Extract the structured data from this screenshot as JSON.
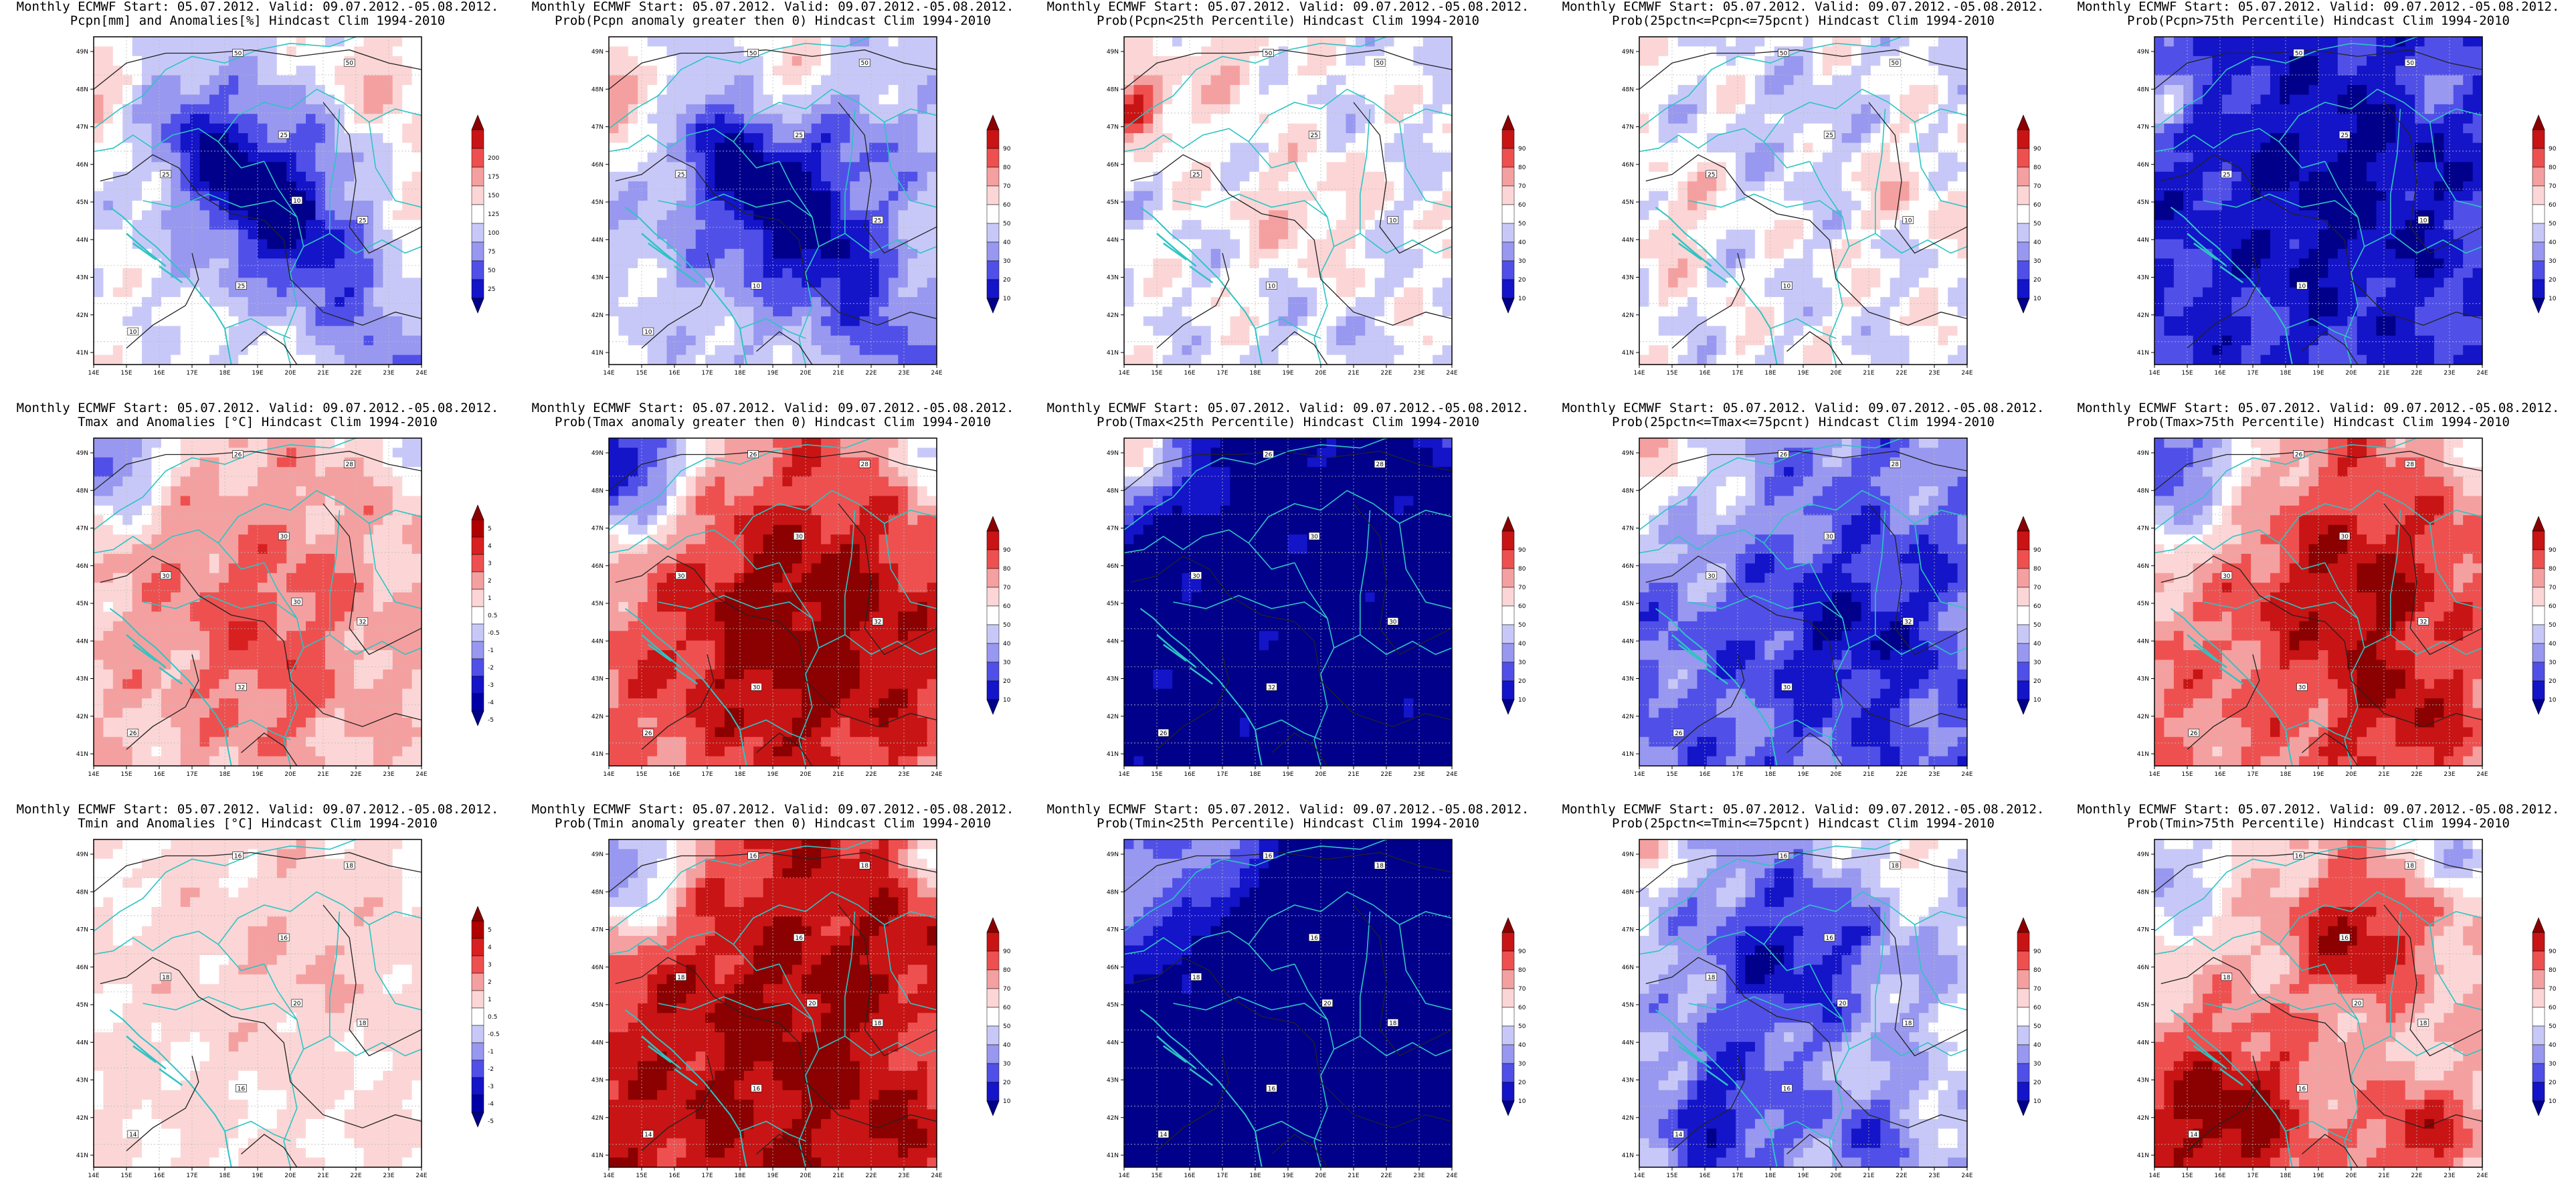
{
  "panels": [
    {
      "title1": "Monthly ECMWF Start: 05.07.2012. Valid: 09.07.2012.-05.08.2012.",
      "title2": "Pcpn[mm] and Anomalies[%] Hindcast Clim 1994-2010",
      "variable": "Pcpn",
      "scheme": "anom_pcpn",
      "field": "pcpn",
      "contour_labels": [
        "50",
        "50",
        "25",
        "25",
        "25",
        "25",
        "10",
        "10"
      ],
      "colorbar": {
        "levels": [
          "200",
          "175",
          "150",
          "125",
          "100",
          "75",
          "50",
          "25"
        ],
        "colors": [
          "#8b0000",
          "#c81414",
          "#ee5050",
          "#f5a0a0",
          "#fcd6d6",
          "#ffffff",
          "#c8c8f8",
          "#9898f0",
          "#5050e8",
          "#1414c8",
          "#00008b"
        ]
      }
    },
    {
      "title1": "Monthly ECMWF Start: 05.07.2012. Valid: 09.07.2012.-05.08.2012.",
      "title2": "Prob(Pcpn anomaly greater then 0) Hindcast Clim 1994-2010",
      "variable": "Pcpn",
      "scheme": "prob",
      "field": "pcpn_pos",
      "contour_labels": [
        "50",
        "50",
        "25",
        "25",
        "25",
        "10",
        "10"
      ],
      "colorbar": {
        "levels": [
          "90",
          "80",
          "70",
          "60",
          "50",
          "40",
          "30",
          "20",
          "10"
        ],
        "colors": [
          "#8b0000",
          "#c81414",
          "#ee5050",
          "#f5a0a0",
          "#fcd6d6",
          "#ffffff",
          "#c8c8f8",
          "#9898f0",
          "#5050e8",
          "#1414c8",
          "#00008b"
        ]
      }
    },
    {
      "title1": "Monthly ECMWF Start: 05.07.2012. Valid: 09.07.2012.-05.08.2012.",
      "title2": "Prob(Pcpn<25th Percentile) Hindcast Clim 1994-2010",
      "variable": "Pcpn",
      "scheme": "prob",
      "field": "pcpn_low",
      "contour_labels": [
        "50",
        "50",
        "25",
        "25",
        "10",
        "10"
      ],
      "colorbar": {
        "levels": [
          "90",
          "80",
          "70",
          "60",
          "50",
          "40",
          "30",
          "20",
          "10"
        ],
        "colors": [
          "#8b0000",
          "#c81414",
          "#ee5050",
          "#f5a0a0",
          "#fcd6d6",
          "#ffffff",
          "#c8c8f8",
          "#9898f0",
          "#5050e8",
          "#1414c8",
          "#00008b"
        ]
      }
    },
    {
      "title1": "Monthly ECMWF Start: 05.07.2012. Valid: 09.07.2012.-05.08.2012.",
      "title2": "Prob(25pctn<=Pcpn<=75pcnt) Hindcast Clim 1994-2010",
      "variable": "Pcpn",
      "scheme": "prob",
      "field": "pcpn_mid",
      "contour_labels": [
        "50",
        "50",
        "25",
        "25",
        "10",
        "10"
      ],
      "colorbar": {
        "levels": [
          "90",
          "80",
          "70",
          "60",
          "50",
          "40",
          "30",
          "20",
          "10"
        ],
        "colors": [
          "#8b0000",
          "#c81414",
          "#ee5050",
          "#f5a0a0",
          "#fcd6d6",
          "#ffffff",
          "#c8c8f8",
          "#9898f0",
          "#5050e8",
          "#1414c8",
          "#00008b"
        ]
      }
    },
    {
      "title1": "Monthly ECMWF Start: 05.07.2012. Valid: 09.07.2012.-05.08.2012.",
      "title2": "Prob(Pcpn>75th Percentile) Hindcast Clim 1994-2010",
      "variable": "Pcpn",
      "scheme": "prob",
      "field": "pcpn_high",
      "contour_labels": [
        "50",
        "50",
        "25",
        "25",
        "10",
        "10"
      ],
      "colorbar": {
        "levels": [
          "90",
          "80",
          "70",
          "60",
          "50",
          "40",
          "30",
          "20",
          "10"
        ],
        "colors": [
          "#8b0000",
          "#c81414",
          "#ee5050",
          "#f5a0a0",
          "#fcd6d6",
          "#ffffff",
          "#c8c8f8",
          "#9898f0",
          "#5050e8",
          "#1414c8",
          "#00008b"
        ]
      }
    },
    {
      "title1": "Monthly ECMWF Start: 05.07.2012. Valid: 09.07.2012.-05.08.2012.",
      "title2": "Tmax and Anomalies [°C] Hindcast Clim 1994-2010",
      "variable": "Tmax",
      "scheme": "anom_t",
      "field": "tmax",
      "contour_labels": [
        "26",
        "28",
        "30",
        "30",
        "32",
        "32",
        "26",
        "30"
      ],
      "colorbar": {
        "levels": [
          "5",
          "4",
          "3",
          "2",
          "1",
          "0.5",
          "-0.5",
          "-1",
          "-2",
          "-3",
          "-4",
          "-5"
        ],
        "colors": [
          "#8b0000",
          "#b00000",
          "#d82020",
          "#ee5050",
          "#f5a0a0",
          "#fcd6d6",
          "#ffffff",
          "#c8c8f8",
          "#9898f0",
          "#5050e8",
          "#1414c8",
          "#0000a8",
          "#00008b"
        ]
      }
    },
    {
      "title1": "Monthly ECMWF Start: 05.07.2012. Valid: 09.07.2012.-05.08.2012.",
      "title2": "Prob(Tmax anomaly greater then 0) Hindcast Clim 1994-2010",
      "variable": "Tmax",
      "scheme": "prob",
      "field": "tmax_pos",
      "contour_labels": [
        "26",
        "28",
        "30",
        "30",
        "32",
        "30",
        "26"
      ],
      "colorbar": {
        "levels": [
          "90",
          "80",
          "70",
          "60",
          "50",
          "40",
          "30",
          "20",
          "10"
        ],
        "colors": [
          "#8b0000",
          "#c81414",
          "#ee5050",
          "#f5a0a0",
          "#fcd6d6",
          "#ffffff",
          "#c8c8f8",
          "#9898f0",
          "#5050e8",
          "#1414c8",
          "#00008b"
        ]
      }
    },
    {
      "title1": "Monthly ECMWF Start: 05.07.2012. Valid: 09.07.2012.-05.08.2012.",
      "title2": "Prob(Tmax<25th Percentile) Hindcast Clim 1994-2010",
      "variable": "Tmax",
      "scheme": "prob",
      "field": "tmax_low",
      "contour_labels": [
        "26",
        "28",
        "30",
        "30",
        "30",
        "32",
        "26"
      ],
      "colorbar": {
        "levels": [
          "90",
          "80",
          "70",
          "60",
          "50",
          "40",
          "30",
          "20",
          "10"
        ],
        "colors": [
          "#8b0000",
          "#c81414",
          "#ee5050",
          "#f5a0a0",
          "#fcd6d6",
          "#ffffff",
          "#c8c8f8",
          "#9898f0",
          "#5050e8",
          "#1414c8",
          "#00008b"
        ]
      }
    },
    {
      "title1": "Monthly ECMWF Start: 05.07.2012. Valid: 09.07.2012.-05.08.2012.",
      "title2": "Prob(25pctn<=Tmax<=75pcnt) Hindcast Clim 1994-2010",
      "variable": "Tmax",
      "scheme": "prob",
      "field": "tmax_mid",
      "contour_labels": [
        "26",
        "28",
        "30",
        "30",
        "32",
        "30",
        "26"
      ],
      "colorbar": {
        "levels": [
          "90",
          "80",
          "70",
          "60",
          "50",
          "40",
          "30",
          "20",
          "10"
        ],
        "colors": [
          "#8b0000",
          "#c81414",
          "#ee5050",
          "#f5a0a0",
          "#fcd6d6",
          "#ffffff",
          "#c8c8f8",
          "#9898f0",
          "#5050e8",
          "#1414c8",
          "#00008b"
        ]
      }
    },
    {
      "title1": "Monthly ECMWF Start: 05.07.2012. Valid: 09.07.2012.-05.08.2012.",
      "title2": "Prob(Tmax>75th Percentile) Hindcast Clim 1994-2010",
      "variable": "Tmax",
      "scheme": "prob",
      "field": "tmax_high",
      "contour_labels": [
        "26",
        "28",
        "30",
        "30",
        "32",
        "30",
        "26"
      ],
      "colorbar": {
        "levels": [
          "90",
          "80",
          "70",
          "60",
          "50",
          "40",
          "30",
          "20",
          "10"
        ],
        "colors": [
          "#8b0000",
          "#c81414",
          "#ee5050",
          "#f5a0a0",
          "#fcd6d6",
          "#ffffff",
          "#c8c8f8",
          "#9898f0",
          "#5050e8",
          "#1414c8",
          "#00008b"
        ]
      }
    },
    {
      "title1": "Monthly ECMWF Start: 05.07.2012. Valid: 09.07.2012.-05.08.2012.",
      "title2": "Tmin and Anomalies [°C] Hindcast Clim 1994-2010",
      "variable": "Tmin",
      "scheme": "anom_t",
      "field": "tmin",
      "contour_labels": [
        "16",
        "18",
        "16",
        "18",
        "18",
        "16",
        "14",
        "20"
      ],
      "colorbar": {
        "levels": [
          "5",
          "4",
          "3",
          "2",
          "1",
          "0.5",
          "-0.5",
          "-1",
          "-2",
          "-3",
          "-4",
          "-5"
        ],
        "colors": [
          "#8b0000",
          "#b00000",
          "#d82020",
          "#ee5050",
          "#f5a0a0",
          "#fcd6d6",
          "#ffffff",
          "#c8c8f8",
          "#9898f0",
          "#5050e8",
          "#1414c8",
          "#0000a8",
          "#00008b"
        ]
      }
    },
    {
      "title1": "Monthly ECMWF Start: 05.07.2012. Valid: 09.07.2012.-05.08.2012.",
      "title2": "Prob(Tmin anomaly greater then 0) Hindcast Clim 1994-2010",
      "variable": "Tmin",
      "scheme": "prob",
      "field": "tmin_pos",
      "contour_labels": [
        "16",
        "18",
        "16",
        "18",
        "18",
        "16",
        "14",
        "20"
      ],
      "colorbar": {
        "levels": [
          "90",
          "80",
          "70",
          "60",
          "50",
          "40",
          "30",
          "20",
          "10"
        ],
        "colors": [
          "#8b0000",
          "#c81414",
          "#ee5050",
          "#f5a0a0",
          "#fcd6d6",
          "#ffffff",
          "#c8c8f8",
          "#9898f0",
          "#5050e8",
          "#1414c8",
          "#00008b"
        ]
      }
    },
    {
      "title1": "Monthly ECMWF Start: 05.07.2012. Valid: 09.07.2012.-05.08.2012.",
      "title2": "Prob(Tmin<25th Percentile) Hindcast Clim 1994-2010",
      "variable": "Tmin",
      "scheme": "prob",
      "field": "tmin_low",
      "contour_labels": [
        "16",
        "18",
        "16",
        "18",
        "18",
        "16",
        "14",
        "20"
      ],
      "colorbar": {
        "levels": [
          "90",
          "80",
          "70",
          "60",
          "50",
          "40",
          "30",
          "20",
          "10"
        ],
        "colors": [
          "#8b0000",
          "#c81414",
          "#ee5050",
          "#f5a0a0",
          "#fcd6d6",
          "#ffffff",
          "#c8c8f8",
          "#9898f0",
          "#5050e8",
          "#1414c8",
          "#00008b"
        ]
      }
    },
    {
      "title1": "Monthly ECMWF Start: 05.07.2012. Valid: 09.07.2012.-05.08.2012.",
      "title2": "Prob(25pctn<=Tmin<=75pcnt) Hindcast Clim 1994-2010",
      "variable": "Tmin",
      "scheme": "prob",
      "field": "tmin_mid",
      "contour_labels": [
        "16",
        "18",
        "16",
        "18",
        "18",
        "16",
        "14",
        "20"
      ],
      "colorbar": {
        "levels": [
          "90",
          "80",
          "70",
          "60",
          "50",
          "40",
          "30",
          "20",
          "10"
        ],
        "colors": [
          "#8b0000",
          "#c81414",
          "#ee5050",
          "#f5a0a0",
          "#fcd6d6",
          "#ffffff",
          "#c8c8f8",
          "#9898f0",
          "#5050e8",
          "#1414c8",
          "#00008b"
        ]
      }
    },
    {
      "title1": "Monthly ECMWF Start: 05.07.2012. Valid: 09.07.2012.-05.08.2012.",
      "title2": "Prob(Tmin>75th Percentile) Hindcast Clim 1994-2010",
      "variable": "Tmin",
      "scheme": "prob",
      "field": "tmin_high",
      "contour_labels": [
        "16",
        "18",
        "16",
        "18",
        "18",
        "16",
        "14",
        "20"
      ],
      "colorbar": {
        "levels": [
          "90",
          "80",
          "70",
          "60",
          "50",
          "40",
          "30",
          "20",
          "10"
        ],
        "colors": [
          "#8b0000",
          "#c81414",
          "#ee5050",
          "#f5a0a0",
          "#fcd6d6",
          "#ffffff",
          "#c8c8f8",
          "#9898f0",
          "#5050e8",
          "#1414c8",
          "#00008b"
        ]
      }
    }
  ],
  "lon_labels": [
    "14E",
    "15E",
    "16E",
    "17E",
    "18E",
    "19E",
    "20E",
    "21E",
    "22E",
    "23E",
    "24E"
  ],
  "lat_labels": [
    "49N",
    "48N",
    "47N",
    "46N",
    "45N",
    "44N",
    "43N",
    "42N",
    "41N"
  ],
  "colors": {
    "land_border": "#2ec4c4",
    "contour": "#222222",
    "grid": "#bbbbbb"
  }
}
